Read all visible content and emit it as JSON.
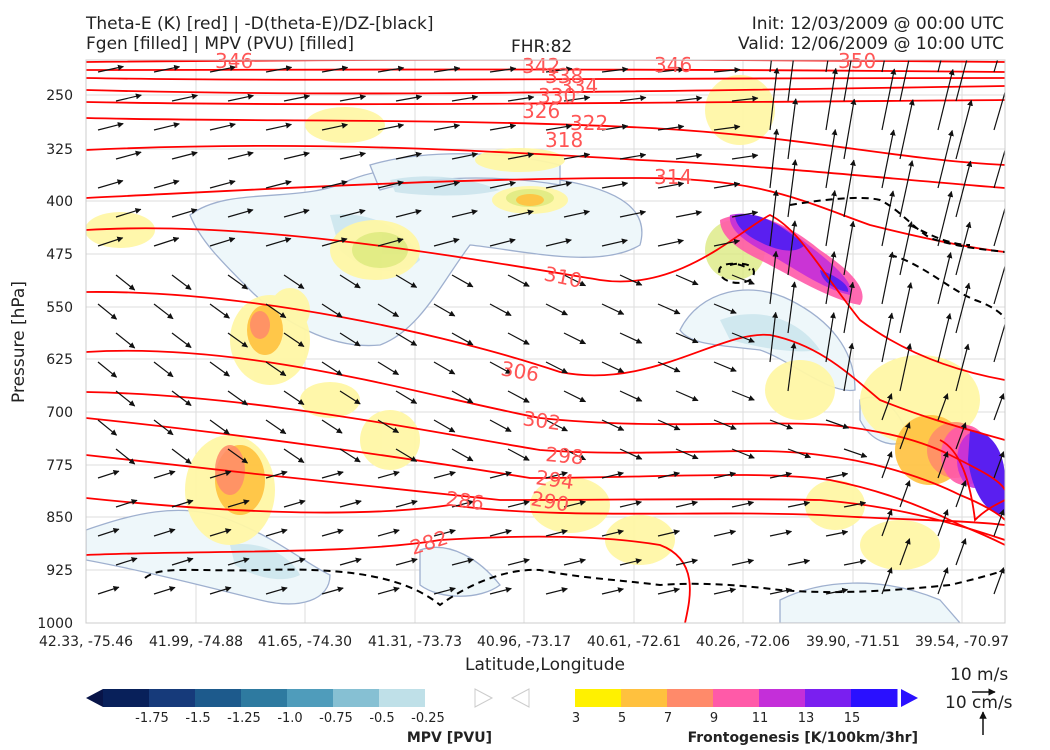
{
  "header": {
    "title_line1": "Theta-E (K) [red] | -D(theta-E)/DZ-[black]",
    "title_line2": "Fgen [filled] | MPV (PVU) [filled]",
    "fhr": "FHR:82",
    "init": "Init: 12/03/2009 @ 00:00 UTC",
    "valid": "Valid: 12/06/2009 @ 10:00 UTC"
  },
  "chart_data": {
    "type": "cross-section",
    "xlabel": "Latitude,Longitude",
    "ylabel": "Pressure [hPa]",
    "x_ticks": [
      "42.33, -75.46",
      "41.99, -74.88",
      "41.65, -74.30",
      "41.31, -73.73",
      "40.96, -73.17",
      "40.61, -72.61",
      "40.26, -72.06",
      "39.90, -71.51",
      "39.54, -70.97"
    ],
    "y_ticks": [
      250,
      325,
      400,
      475,
      550,
      625,
      700,
      775,
      850,
      925,
      1000
    ],
    "ylim": [
      1000,
      200
    ],
    "theta_e_contour_labels": [
      282,
      286,
      290,
      294,
      298,
      302,
      306,
      310,
      314,
      318,
      322,
      326,
      330,
      334,
      338,
      342,
      346,
      350
    ],
    "colorbars": [
      {
        "title": "MPV [PVU]",
        "ticks": [
          "-1.75",
          "-1.5",
          "-1.25",
          "-1.0",
          "-0.75",
          "-0.5",
          "-0.25"
        ],
        "colors": [
          "#08205a",
          "#163a7a",
          "#1d5a8c",
          "#2e7aa0",
          "#4f9cbb",
          "#86c0d3",
          "#bfe0e8",
          "#ffffff"
        ]
      },
      {
        "title": "Frontogenesis [K/100km/3hr]",
        "ticks": [
          "3",
          "5",
          "7",
          "9",
          "11",
          "13",
          "15"
        ],
        "colors": [
          "#ffffff",
          "#fff100",
          "#ffc13e",
          "#ff8a6a",
          "#ff5aa8",
          "#c42fd9",
          "#7a1ff0",
          "#2a10ff"
        ]
      }
    ],
    "vector_scale": [
      "10 m/s",
      "10 cm/s"
    ]
  }
}
